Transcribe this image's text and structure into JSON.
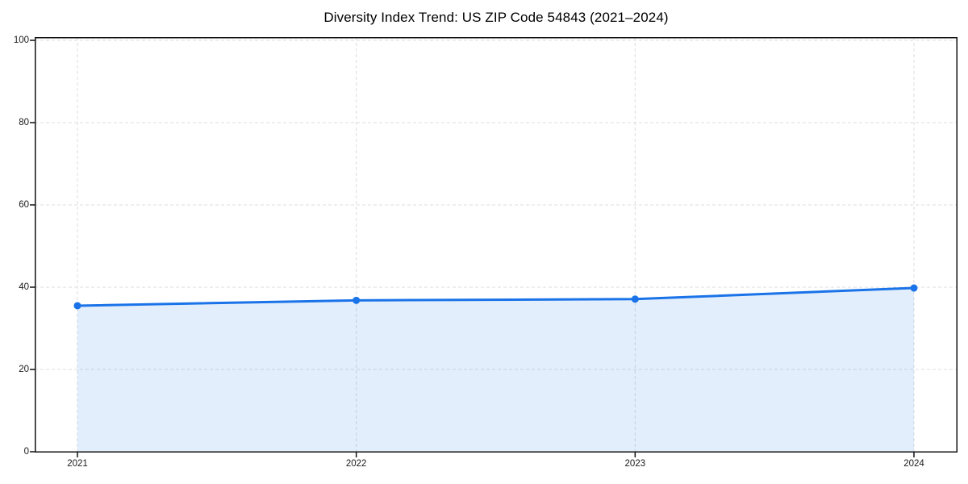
{
  "chart_data": {
    "type": "line",
    "title": "Diversity Index Trend: US ZIP Code 54843 (2021–2024)",
    "x": [
      "2021",
      "2022",
      "2023",
      "2024"
    ],
    "values": [
      35.5,
      36.8,
      37.1,
      39.8
    ],
    "xlabel": "",
    "ylabel": "",
    "ylim": [
      0,
      100
    ],
    "yticks": [
      0,
      20,
      40,
      60,
      80,
      100
    ],
    "grid": "dashed, horizontal and vertical",
    "legend": "none",
    "fill_under_line": true,
    "marker": "circle",
    "colors": {
      "line": "#1a73e8",
      "marker": "#1a73e8",
      "fill": "rgba(26, 115, 232, 0.12)",
      "grid": "#dcdcdc",
      "spine": "#111111",
      "text": "#1a1a1a",
      "background": "#ffffff"
    }
  }
}
